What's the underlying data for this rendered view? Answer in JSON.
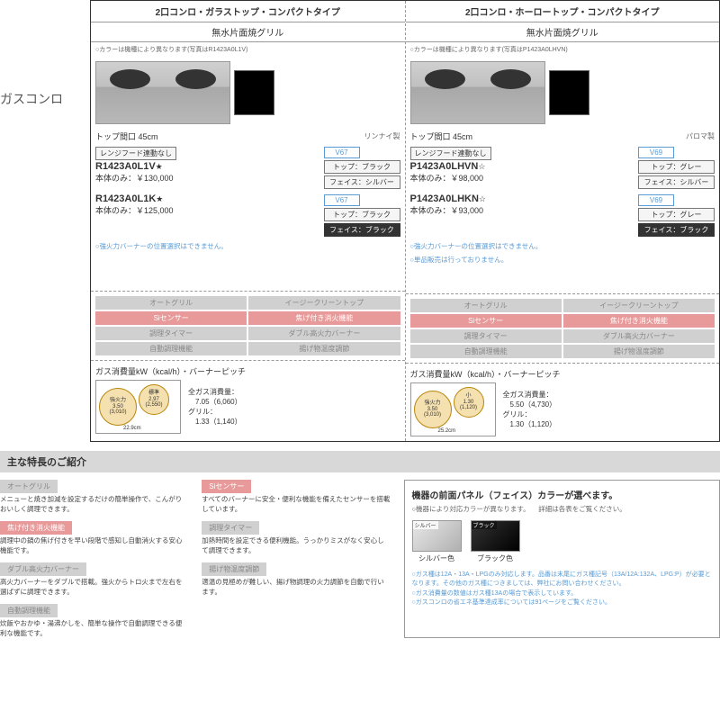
{
  "sidebar": {
    "title": "ガスコンロ"
  },
  "columns": [
    {
      "type": "2口コンロ・ガラストップ・コンパクトタイプ",
      "grill": "無水片面焼グリル",
      "colorNote": "○カラーは機種により異なります(写真はR1423A0L1V)",
      "topWidth": "トップ間口 45cm",
      "maker": "リンナイ製",
      "hoodLink": "レンジフード連動なし",
      "models": [
        {
          "name": "R1423A0L1V",
          "star": "★",
          "price": "本体のみ：￥130,000",
          "code": "V67",
          "top": "トップ：ブラック",
          "face": "フェイス：シルバー",
          "faceDark": false
        },
        {
          "name": "R1423A0L1K",
          "star": "★",
          "price": "本体のみ：￥125,000",
          "code": "V67",
          "top": "トップ：ブラック",
          "face": "フェイス：ブラック",
          "faceDark": true
        }
      ],
      "notes": [
        "○強火力バーナーの位置選択はできません。"
      ],
      "burners": {
        "big": {
          "label": "強火力",
          "val": "3.50",
          "cal": "(3,010)"
        },
        "small": {
          "label": "標準",
          "val": "2.97",
          "cal": "(2,550)"
        },
        "pitch": "22.9cm"
      },
      "gas": {
        "total": "7.05（6,060）",
        "grill": "1.33（1,140）"
      }
    },
    {
      "type": "2口コンロ・ホーロートップ・コンパクトタイプ",
      "grill": "無水片面焼グリル",
      "colorNote": "○カラーは機種により異なります(写真はP1423A0LHVN)",
      "topWidth": "トップ間口 45cm",
      "maker": "パロマ製",
      "hoodLink": "レンジフード連動なし",
      "models": [
        {
          "name": "P1423A0LHVN",
          "star": "☆",
          "price": "本体のみ：￥98,000",
          "code": "V69",
          "top": "トップ：グレー",
          "face": "フェイス：シルバー",
          "faceDark": false
        },
        {
          "name": "P1423A0LHKN",
          "star": "☆",
          "price": "本体のみ：￥93,000",
          "code": "V69",
          "top": "トップ：グレー",
          "face": "フェイス：ブラック",
          "faceDark": true
        }
      ],
      "notes": [
        "○強火力バーナーの位置選択はできません。",
        "○単品販売は行っておりません。"
      ],
      "burners": {
        "big": {
          "label": "強火力",
          "val": "3.50",
          "cal": "(3,010)"
        },
        "small": {
          "label": "小",
          "val": "1.30",
          "cal": "(1,120)"
        },
        "pitch": "25.2cm"
      },
      "gas": {
        "total": "5.50（4,730）",
        "grill": "1.30（1,120）"
      }
    }
  ],
  "featureBadges": [
    {
      "t": "オートグリル",
      "a": false
    },
    {
      "t": "イージークリーントップ",
      "a": false
    },
    {
      "t": "Siセンサー",
      "a": true
    },
    {
      "t": "焦げ付き消火機能",
      "a": true
    },
    {
      "t": "調理タイマー",
      "a": false
    },
    {
      "t": "ダブル高火力バーナー",
      "a": false
    },
    {
      "t": "自動調理機能",
      "a": false
    },
    {
      "t": "揚げ物温度調節",
      "a": false
    }
  ],
  "gasTitle": "ガス消費量kW（kcal/h）・バーナーピッチ",
  "gasTotalLabel": "全ガス消費量：",
  "gasGrillLabel": "グリル：",
  "sectionTitle": "主な特長のご紹介",
  "featuresDetail": [
    {
      "label": "オートグリル",
      "style": "gray",
      "desc": "メニューと焼き加減を設定するだけの簡単操作で、こんがりおいしく調理できます。"
    },
    {
      "label": "Siセンサー",
      "style": "pink",
      "desc": "すべてのバーナーに安全・便利な機能を備えたセンサーを搭載しています。"
    },
    {
      "label": "焦げ付き消火機能",
      "style": "pink",
      "desc": "調理中の鍋の焦げ付きを早い段階で感知し自動消火する安心機能です。"
    },
    {
      "label": "調理タイマー",
      "style": "gray",
      "desc": "加熱時間を設定できる便利機能。うっかりミスがなく安心して調理できます。"
    },
    {
      "label": "ダブル高火力バーナー",
      "style": "gray",
      "desc": "高火力バーナーをダブルで搭載。強火からトロ火まで左右を選ばずに調理できます。"
    },
    {
      "label": "揚げ物温度調節",
      "style": "gray",
      "desc": "適温の見極めが難しい、揚げ物調理の火力調節を自動で行います。"
    },
    {
      "label": "自動調理機能",
      "style": "gray",
      "desc": "炊飯やおかゆ・湯沸かしを、簡単な操作で自動調理できる便利な機能です。"
    }
  ],
  "panel": {
    "title": "機器の前面パネル（フェイス）カラーが選べます。",
    "note": "○機器により対応カラーが異なります。\n　詳細は各表をご覧ください。",
    "swatches": [
      {
        "label": "シルバー",
        "sub": "シルバー色",
        "cls": "silver"
      },
      {
        "label": "ブラック",
        "sub": "ブラック色",
        "cls": "black"
      }
    ],
    "footer": [
      "○ガス種は12A・13A・LPGのみ対応します。品番は末尾にガス種記号（13A/12A:132A、LPG:P）が必要となります。その他のガス種につきましては、弊社にお問い合わせください。",
      "○ガス消費量の数値はガス種13Aの場合で表示しています。",
      "○ガスコンロの省エネ基準達成率については91ページをご覧ください。"
    ]
  }
}
